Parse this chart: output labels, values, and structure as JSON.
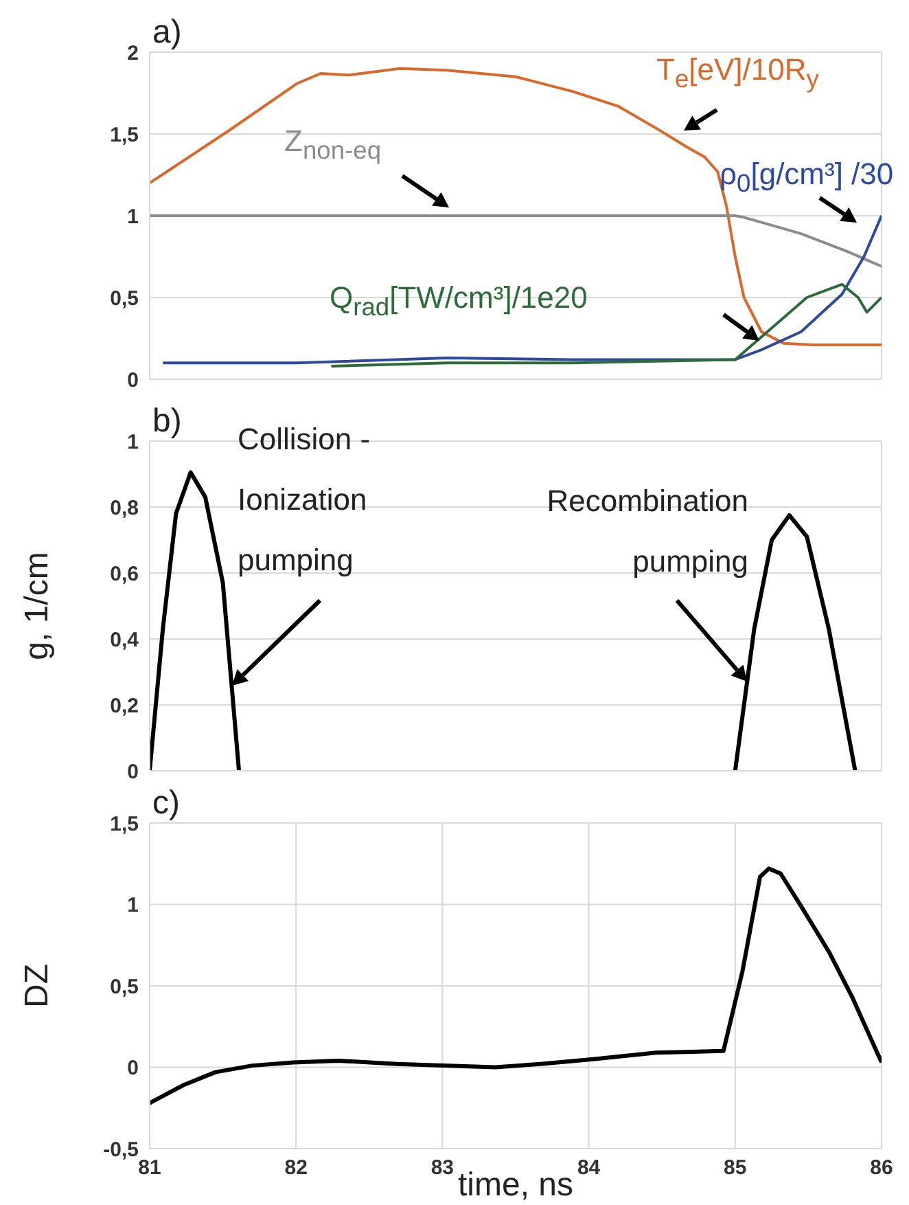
{
  "chart_data": [
    {
      "type": "line",
      "title": "a)",
      "xlim": [
        81,
        86
      ],
      "xticks": [
        81,
        82,
        83,
        84,
        85,
        86
      ],
      "ylim": [
        0,
        2
      ],
      "yticks": [
        0,
        {
          "value": 0.5,
          "label": "0,5"
        },
        1,
        {
          "value": 1.5,
          "label": "1,5"
        },
        2
      ],
      "grid": true,
      "tick_labels": "y",
      "series": [
        {
          "name": "T$_{e}$[eV]/10R$_{y}$",
          "color": "#d9692b",
          "x": [
            81,
            81.54,
            82.01,
            82.17,
            82.36,
            82.71,
            83.03,
            83.5,
            83.89,
            84.2,
            84.47,
            84.67,
            84.79,
            84.88,
            84.94,
            85.0,
            85.06,
            85.18,
            85.33,
            85.53,
            86
          ],
          "values": [
            1.2,
            1.52,
            1.81,
            1.87,
            1.86,
            1.9,
            1.89,
            1.85,
            1.76,
            1.67,
            1.53,
            1.42,
            1.36,
            1.27,
            1.06,
            0.75,
            0.5,
            0.29,
            0.22,
            0.21,
            0.21
          ]
        },
        {
          "name": "Z$_{non-eq}$",
          "color": "#8c8c8c",
          "x": [
            81,
            82,
            83,
            84,
            85,
            85.06,
            85.45,
            85.77,
            86
          ],
          "values": [
            1,
            1,
            1,
            1,
            1,
            0.99,
            0.89,
            0.78,
            0.69
          ]
        },
        {
          "name": "ρ$_{0}$[g/cm³] /30",
          "color": "#2e4a9e",
          "x": [
            81.09,
            82,
            83.03,
            83.89,
            85.0,
            85.18,
            85.45,
            85.73,
            85.88,
            86
          ],
          "values": [
            0.1,
            0.1,
            0.13,
            0.12,
            0.12,
            0.18,
            0.29,
            0.52,
            0.75,
            1.0
          ]
        },
        {
          "name": "Q$_{rad}$[TW/cm³]/1e20",
          "color": "#2e6b3a",
          "x": [
            82.24,
            83.03,
            83.89,
            85.0,
            85.22,
            85.49,
            85.73,
            85.84,
            85.9,
            86
          ],
          "values": [
            0.08,
            0.1,
            0.1,
            0.12,
            0.29,
            0.5,
            0.58,
            0.5,
            0.41,
            0.5
          ]
        }
      ]
    },
    {
      "type": "line",
      "title": "b)",
      "ylabel": "g, 1/cm",
      "xlim": [
        81,
        86
      ],
      "xticks": [
        81,
        82,
        83,
        84,
        85,
        86
      ],
      "ylim": [
        0,
        1
      ],
      "yticks": [
        0,
        {
          "value": 0.2,
          "label": "0,2"
        },
        {
          "value": 0.4,
          "label": "0,4"
        },
        {
          "value": 0.6,
          "label": "0,6"
        },
        {
          "value": 0.8,
          "label": "0,8"
        },
        1
      ],
      "grid": true,
      "tick_labels": "y",
      "annotations": [
        "Collision -\nIonization\npumping",
        "Recombination\npumping"
      ],
      "series": [
        {
          "color": "#000000",
          "x": [
            81,
            81.09,
            81.18,
            81.28,
            81.38,
            81.5,
            81.61,
            83.3,
            85.0,
            85.13,
            85.25,
            85.37,
            85.49,
            85.64,
            85.82
          ],
          "values": [
            0,
            0.43,
            0.78,
            0.905,
            0.83,
            0.57,
            0,
            null,
            0,
            0.43,
            0.7,
            0.775,
            0.71,
            0.43,
            0
          ]
        }
      ]
    },
    {
      "type": "line",
      "title": "c)",
      "ylabel": "DZ",
      "xlabel": "time, ns",
      "xlim": [
        81,
        86
      ],
      "xticks": [
        81,
        82,
        83,
        84,
        85,
        86
      ],
      "ylim": [
        -0.5,
        1.5
      ],
      "yticks": [
        {
          "value": -0.5,
          "label": "-0,5"
        },
        0,
        {
          "value": 0.5,
          "label": "0,5"
        },
        1,
        {
          "value": 1.5,
          "label": "1,5"
        }
      ],
      "grid": true,
      "series": [
        {
          "color": "#000000",
          "x": [
            81,
            81.23,
            81.45,
            81.7,
            81.98,
            82.29,
            82.69,
            83.36,
            83.67,
            84.03,
            84.46,
            84.92,
            85.05,
            85.17,
            85.23,
            85.31,
            85.45,
            85.64,
            85.8,
            86
          ],
          "values": [
            -0.22,
            -0.11,
            -0.03,
            0.01,
            0.03,
            0.04,
            0.02,
            0,
            0.02,
            0.05,
            0.09,
            0.1,
            0.59,
            1.17,
            1.22,
            1.19,
            0.99,
            0.71,
            0.43,
            0.03
          ]
        }
      ]
    }
  ]
}
